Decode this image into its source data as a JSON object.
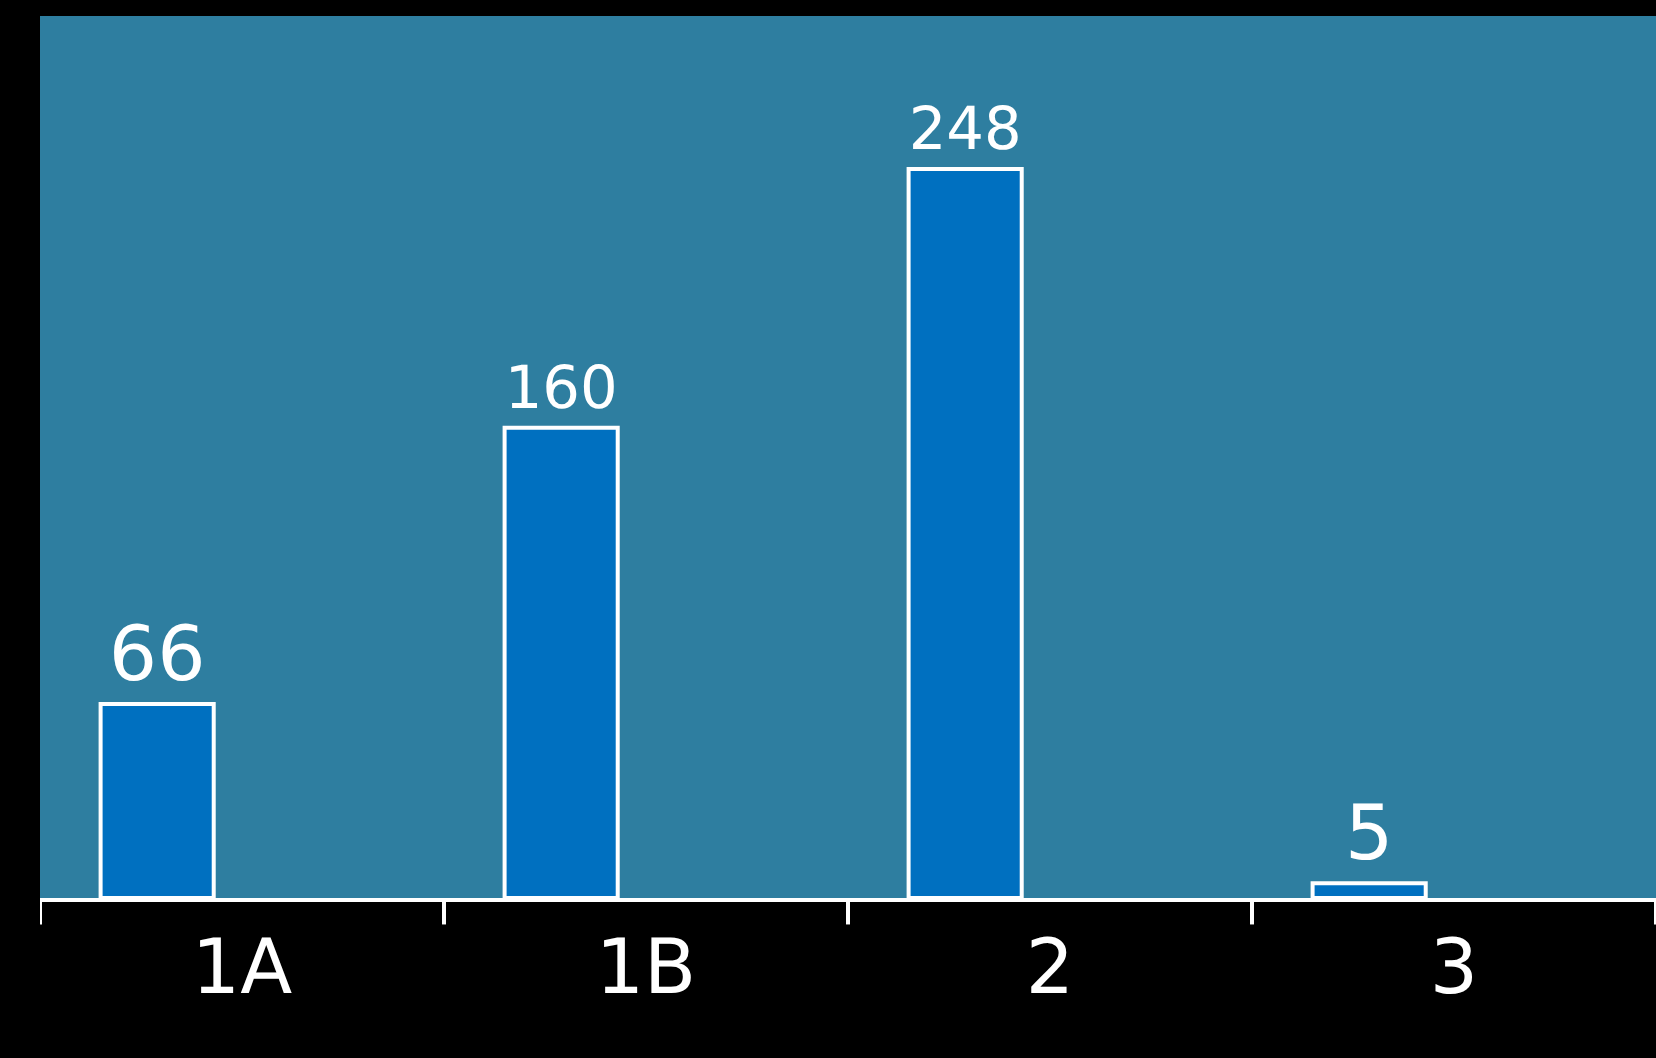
{
  "chart_data": {
    "type": "bar",
    "categories": [
      "1A",
      "1B",
      "2",
      "3"
    ],
    "values": [
      66,
      160,
      248,
      5
    ],
    "color": "#0070c0",
    "data_labels": true,
    "legend": false
  }
}
